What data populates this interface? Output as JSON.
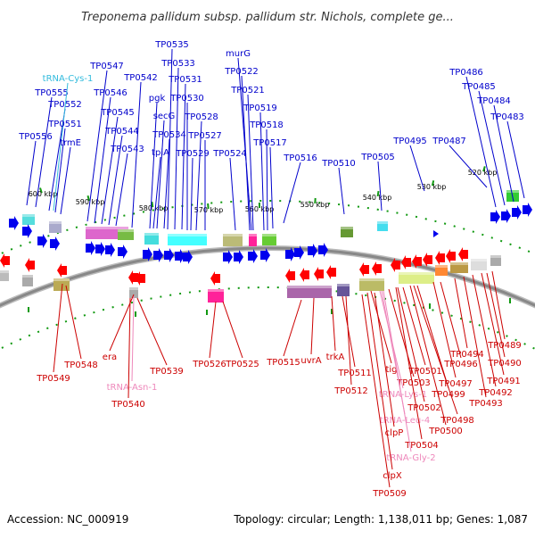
{
  "title": "Treponema pallidum subsp. pallidum str. Nichols, complete ge...",
  "accession": "Accession: NC_000919",
  "topology": "Topology: circular; Length: 1,138,011 bp; Genes: 1,087",
  "colors": {
    "forward_label": "#0000cc",
    "reverse_label": "#cc0000",
    "trna_forward": "#33bbdd",
    "trna_reverse": "#ee88bb",
    "backbone": "#888888",
    "tick": "#119911"
  },
  "scale_ticks": [
    "600 kbp",
    "590 kbp",
    "580 kbp",
    "570 kbp",
    "560 kbp",
    "550 kbp",
    "540 kbp",
    "530 kbp",
    "520 kbp"
  ],
  "forward_genes": [
    "TP0556",
    "TP0555",
    "TP0552",
    "tRNA-Cys-1",
    "TP0551",
    "trmE",
    "TP0547",
    "TP0546",
    "TP0545",
    "TP0544",
    "TP0543",
    "TP0542",
    "TP0535",
    "TP0533",
    "pgk",
    "secG",
    "TP0531",
    "TP0534",
    "tpiA",
    "TP0530",
    "TP0528",
    "TP0529",
    "TP0527",
    "TP0524",
    "murG",
    "TP0522",
    "TP0521",
    "TP0519",
    "TP0518",
    "TP0517",
    "TP0516",
    "TP0510",
    "TP0505",
    "TP0495",
    "TP0487",
    "TP0486",
    "TP0485",
    "TP0484",
    "TP0483"
  ],
  "reverse_genes": [
    "TP0549",
    "TP0548",
    "era",
    "tRNA-Asn-1",
    "TP0540",
    "TP0539",
    "TP0526",
    "TP0525",
    "TP0515",
    "uvrA",
    "trkA",
    "TP0511",
    "TP0512",
    "tig",
    "TP0503",
    "tRNA-Lys-1",
    "TP0502",
    "tRNA-Leu-4",
    "clpP",
    "TP0504",
    "tRNA-Gly-2",
    "clpX",
    "TP0509",
    "TP0501",
    "TP0499",
    "TP0500",
    "TP0498",
    "TP0497",
    "TP0496",
    "TP0494",
    "TP0493",
    "TP0492",
    "TP0491",
    "TP0490",
    "TP0489"
  ]
}
